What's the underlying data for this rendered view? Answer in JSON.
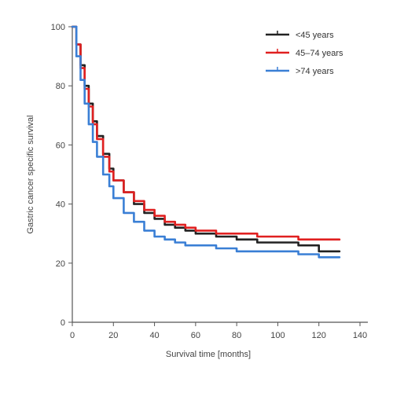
{
  "chart_data": {
    "type": "line",
    "title": "",
    "xlabel": "Survival time [months]",
    "ylabel": "Gastric cancer specific survival",
    "xlim": [
      0,
      140
    ],
    "ylim": [
      0,
      100
    ],
    "x_ticks": [
      0,
      20,
      40,
      60,
      80,
      100,
      120,
      140
    ],
    "y_ticks": [
      0,
      20,
      40,
      60,
      80,
      100
    ],
    "grid": false,
    "legend_position": "top-right",
    "series": [
      {
        "name": "<45 years",
        "color": "#222222",
        "x": [
          0,
          2,
          4,
          6,
          8,
          10,
          12,
          15,
          18,
          20,
          25,
          30,
          35,
          40,
          45,
          50,
          55,
          60,
          70,
          80,
          90,
          100,
          110,
          120,
          130
        ],
        "y": [
          100,
          94,
          87,
          80,
          74,
          68,
          63,
          57,
          52,
          48,
          44,
          40,
          37,
          35,
          33,
          32,
          31,
          30,
          29,
          28,
          27,
          27,
          26,
          24,
          24
        ]
      },
      {
        "name": "45–74 years",
        "color": "#e02020",
        "x": [
          0,
          2,
          4,
          6,
          8,
          10,
          12,
          15,
          18,
          20,
          25,
          30,
          35,
          40,
          45,
          50,
          55,
          60,
          70,
          80,
          90,
          100,
          110,
          120,
          130
        ],
        "y": [
          100,
          94,
          86,
          79,
          73,
          67,
          62,
          56,
          51,
          48,
          44,
          41,
          38,
          36,
          34,
          33,
          32,
          31,
          30,
          30,
          29,
          29,
          28,
          28,
          28
        ]
      },
      {
        "name": ">74 years",
        "color": "#3a7fd5",
        "x": [
          0,
          2,
          4,
          6,
          8,
          10,
          12,
          15,
          18,
          20,
          25,
          30,
          35,
          40,
          45,
          50,
          55,
          60,
          70,
          80,
          90,
          100,
          110,
          120,
          130
        ],
        "y": [
          100,
          90,
          82,
          74,
          67,
          61,
          56,
          50,
          46,
          42,
          37,
          34,
          31,
          29,
          28,
          27,
          26,
          26,
          25,
          24,
          24,
          24,
          23,
          22,
          22
        ]
      }
    ]
  }
}
